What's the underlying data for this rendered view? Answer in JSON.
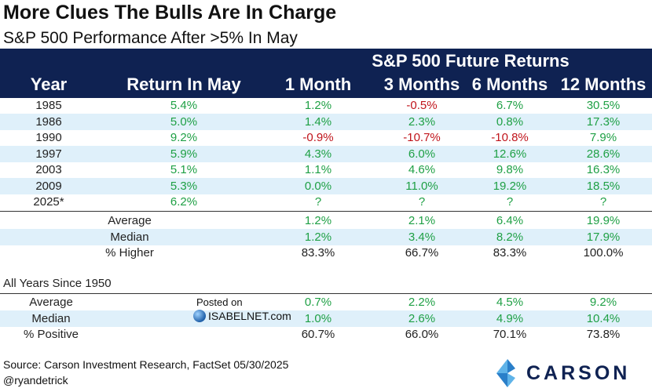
{
  "title": "More Clues The Bulls Are In Charge",
  "subtitle": "S&P 500 Performance After >5% In May",
  "header": {
    "future_returns": "S&P 500 Future Returns",
    "columns": [
      "Year",
      "Return In May",
      "1 Month",
      "3 Months",
      "6 Months",
      "12 Months"
    ]
  },
  "section2_label": "All Years Since 1950",
  "watermark": {
    "posted": "Posted on",
    "site": "ISABELNET.com"
  },
  "source": "Source: Carson Investment Research, FactSet 05/30/2025",
  "handle": "@ryandetrick",
  "logo_text": "CARSON",
  "colors": {
    "header_bg": "#0f2252",
    "shade": "#dff0fa",
    "positive": "#1fa045",
    "negative": "#c0141b"
  },
  "chart_data": {
    "type": "table",
    "title": "More Clues The Bulls Are In Charge",
    "subtitle": "S&P 500 Performance After >5% In May",
    "columns": [
      "Year",
      "Return In May",
      "1 Month",
      "3 Months",
      "6 Months",
      "12 Months"
    ],
    "rows": [
      [
        "1985",
        "5.4%",
        "1.2%",
        "-0.5%",
        "6.7%",
        "30.5%"
      ],
      [
        "1986",
        "5.0%",
        "1.4%",
        "2.3%",
        "0.8%",
        "17.3%"
      ],
      [
        "1990",
        "9.2%",
        "-0.9%",
        "-10.7%",
        "-10.8%",
        "7.9%"
      ],
      [
        "1997",
        "5.9%",
        "4.3%",
        "6.0%",
        "12.6%",
        "28.6%"
      ],
      [
        "2003",
        "5.1%",
        "1.1%",
        "4.6%",
        "9.8%",
        "16.3%"
      ],
      [
        "2009",
        "5.3%",
        "0.0%",
        "11.0%",
        "19.2%",
        "18.5%"
      ],
      [
        "2025*",
        "6.2%",
        "?",
        "?",
        "?",
        "?"
      ]
    ],
    "summary": [
      [
        "Average",
        "1.2%",
        "2.1%",
        "6.4%",
        "19.9%"
      ],
      [
        "Median",
        "1.2%",
        "3.4%",
        "8.2%",
        "17.9%"
      ],
      [
        "% Higher",
        "83.3%",
        "66.7%",
        "83.3%",
        "100.0%"
      ]
    ],
    "all_years_since_1950": [
      [
        "Average",
        "0.7%",
        "2.2%",
        "4.5%",
        "9.2%"
      ],
      [
        "Median",
        "1.0%",
        "2.6%",
        "4.9%",
        "10.4%"
      ],
      [
        "% Positive",
        "60.7%",
        "66.0%",
        "70.1%",
        "73.8%"
      ]
    ]
  }
}
